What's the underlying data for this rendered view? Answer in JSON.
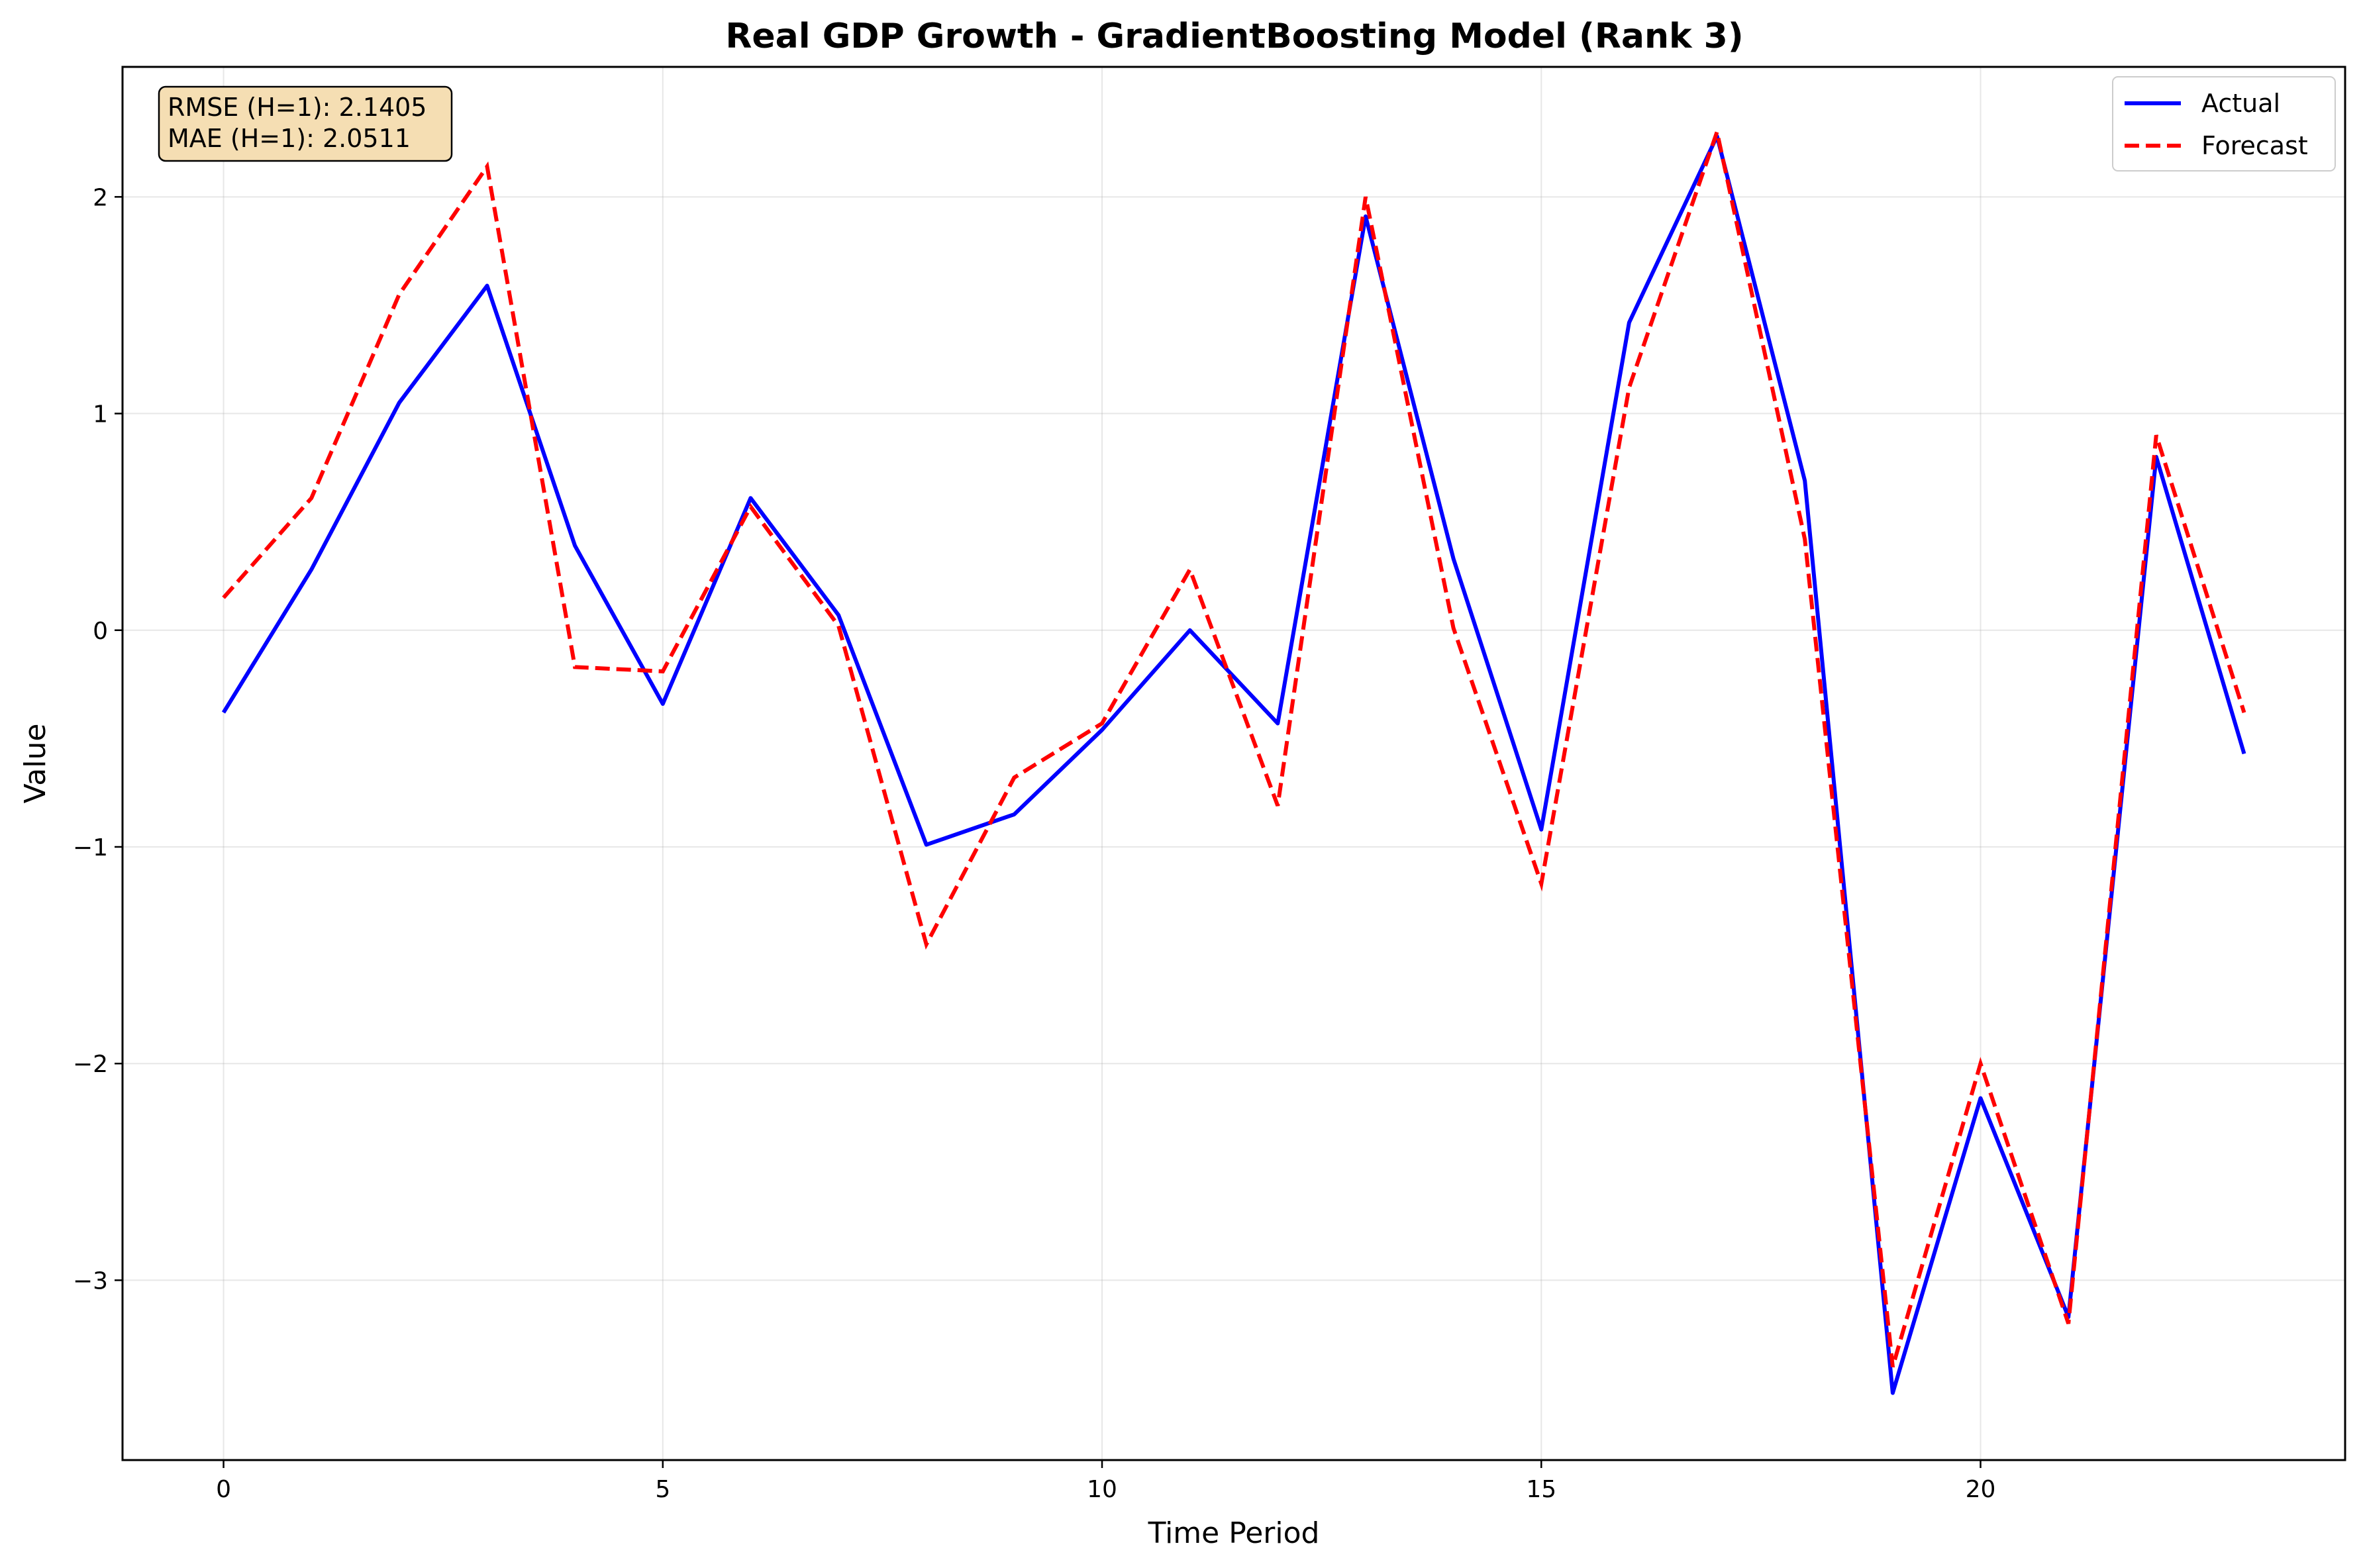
{
  "chart_data": {
    "type": "line",
    "title": "Real GDP Growth - GradientBoosting Model (Rank 3)",
    "xlabel": "Time Period",
    "ylabel": "Value",
    "xlim": [
      -1.15,
      24.15
    ],
    "ylim": [
      -3.83,
      2.6
    ],
    "x_ticks": [
      0,
      5,
      10,
      15,
      20
    ],
    "x_tick_labels": [
      "0",
      "5",
      "10",
      "15",
      "20"
    ],
    "y_ticks": [
      -3,
      -2,
      -1,
      0,
      1,
      2
    ],
    "y_tick_labels": [
      "−3",
      "−2",
      "−1",
      "0",
      "1",
      "2"
    ],
    "grid": true,
    "legend_position": "top-right",
    "x": [
      0,
      1,
      2,
      3,
      4,
      5,
      6,
      7,
      8,
      9,
      10,
      11,
      12,
      13,
      14,
      15,
      16,
      17,
      18,
      19,
      20,
      21,
      22,
      23
    ],
    "series": [
      {
        "name": "Actual",
        "color": "#0000ff",
        "style": "solid",
        "values": [
          -0.38,
          0.28,
          1.05,
          1.59,
          0.39,
          -0.34,
          0.61,
          0.07,
          -0.99,
          -0.85,
          -0.46,
          0.0,
          -0.43,
          1.91,
          0.33,
          -0.92,
          1.42,
          2.28,
          0.69,
          -3.52,
          -2.16,
          -3.17,
          0.8,
          -0.57
        ]
      },
      {
        "name": "Forecast",
        "color": "#ff0000",
        "style": "dashed",
        "values": [
          0.15,
          0.61,
          1.55,
          2.14,
          -0.17,
          -0.19,
          0.57,
          0.02,
          -1.45,
          -0.68,
          -0.43,
          0.28,
          -0.81,
          2.0,
          0.01,
          -1.17,
          1.12,
          2.3,
          0.42,
          -3.4,
          -2.0,
          -3.2,
          0.9,
          -0.38
        ]
      }
    ],
    "annotation": {
      "lines": [
        "RMSE (H=1): 2.1405",
        "MAE (H=1): 2.0511"
      ],
      "background": "#f5deb3",
      "position": "top-left"
    }
  }
}
